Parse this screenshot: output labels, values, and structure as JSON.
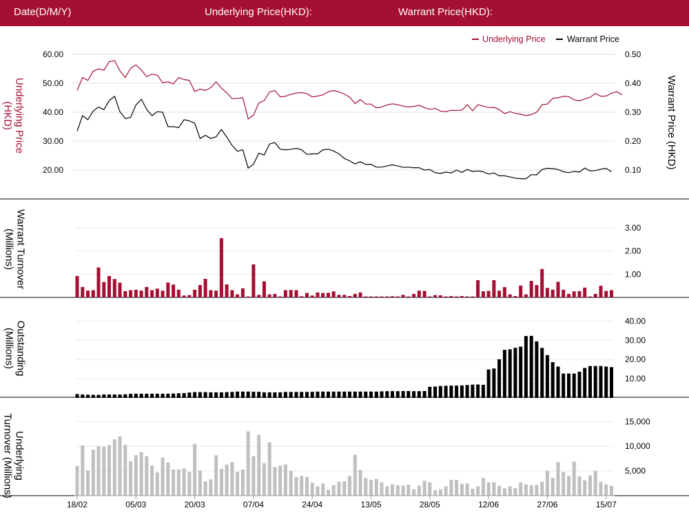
{
  "header": {
    "date_label": "Date(D/M/Y)",
    "underlying_label": "Underlying Price(HKD):",
    "warrant_label": "Warrant Price(HKD):"
  },
  "colors": {
    "brand": "#a50f31",
    "underlying": "#a50f31",
    "warrant": "#000000",
    "outstanding": "#000000",
    "underlying_turnover": "#c0c0c0"
  },
  "chart_data": [
    {
      "type": "line",
      "legend": [
        "Underlying Price",
        "Warrant Price"
      ],
      "legend_position": "top-right",
      "ylabel_left": "Underlying Price (HKD)",
      "ylabel_right": "Warrant  Price (HKD)",
      "yticks_left": [
        "60.00",
        "50.00",
        "40.00",
        "30.00",
        "20.00"
      ],
      "yticks_right": [
        "0.50",
        "0.40",
        "0.30",
        "0.20",
        "0.10"
      ],
      "ylim_left": [
        20,
        60
      ],
      "ylim_right": [
        0.1,
        0.5
      ],
      "grid": true,
      "series": [
        {
          "name": "Underlying Price",
          "axis": "left",
          "values": [
            47.5,
            52,
            51,
            54.2,
            55,
            54.5,
            57.5,
            57.8,
            54.3,
            52,
            55.2,
            56.4,
            54.6,
            52.3,
            53.2,
            52.8,
            50.2,
            50.5,
            49.8,
            52,
            51.3,
            51,
            47.2,
            48,
            47.5,
            48.5,
            50.5,
            48.3,
            46.7,
            44.7,
            44.8,
            45,
            37.7,
            39,
            43.2,
            44,
            47,
            47.5,
            45.3,
            45.5,
            46.2,
            46.6,
            46.8,
            46.4,
            45.3,
            45.6,
            46,
            47.1,
            47.5,
            47,
            46.3,
            45.2,
            43,
            44.4,
            42.8,
            42.8,
            41.5,
            41.8,
            42.5,
            42.9,
            42.6,
            42.1,
            41.8,
            42,
            42.4,
            41.6,
            41,
            41.3,
            40.4,
            40.2,
            40.7,
            40.6,
            40.7,
            42.6,
            40.5,
            42.6,
            42.1,
            41.6,
            41.7,
            40.9,
            39.5,
            40.2,
            39.6,
            39.3,
            38.8,
            39.2,
            40,
            42.6,
            42.8,
            44.8,
            45,
            45.5,
            45.4,
            44.3,
            43.9,
            44.6,
            45.2,
            46.5,
            45.5,
            45.6,
            46.6,
            47.1,
            46
          ]
        },
        {
          "name": "Warrant Price",
          "axis": "right",
          "values": [
            0.235,
            0.288,
            0.274,
            0.304,
            0.318,
            0.309,
            0.34,
            0.355,
            0.302,
            0.278,
            0.282,
            0.325,
            0.345,
            0.31,
            0.288,
            0.302,
            0.3,
            0.25,
            0.25,
            0.247,
            0.274,
            0.27,
            0.262,
            0.209,
            0.22,
            0.209,
            0.215,
            0.24,
            0.214,
            0.185,
            0.165,
            0.17,
            0.107,
            0.12,
            0.158,
            0.152,
            0.19,
            0.195,
            0.172,
            0.17,
            0.172,
            0.175,
            0.17,
            0.154,
            0.156,
            0.156,
            0.17,
            0.172,
            0.166,
            0.156,
            0.14,
            0.132,
            0.121,
            0.129,
            0.119,
            0.12,
            0.11,
            0.11,
            0.114,
            0.118,
            0.114,
            0.109,
            0.11,
            0.108,
            0.108,
            0.1,
            0.102,
            0.091,
            0.088,
            0.093,
            0.09,
            0.1,
            0.092,
            0.102,
            0.095,
            0.097,
            0.094,
            0.086,
            0.09,
            0.08,
            0.08,
            0.076,
            0.072,
            0.07,
            0.07,
            0.084,
            0.083,
            0.102,
            0.106,
            0.105,
            0.102,
            0.094,
            0.091,
            0.095,
            0.093,
            0.107,
            0.097,
            0.098,
            0.103,
            0.106,
            0.094
          ]
        }
      ]
    },
    {
      "type": "bar",
      "ylabel": "Warrant  Turnover (Millions)",
      "yticks": [
        "3.00",
        "2.00",
        "1.00"
      ],
      "ylim": [
        0,
        3.2
      ],
      "values": [
        0.92,
        0.45,
        0.29,
        0.31,
        1.29,
        0.66,
        0.92,
        0.79,
        0.63,
        0.27,
        0.31,
        0.33,
        0.29,
        0.45,
        0.31,
        0.38,
        0.29,
        0.64,
        0.55,
        0.33,
        0.08,
        0.1,
        0.33,
        0.53,
        0.8,
        0.31,
        0.29,
        2.55,
        0.56,
        0.31,
        0.13,
        0.39,
        0.04,
        1.42,
        0.11,
        0.69,
        0.13,
        0.15,
        0.04,
        0.31,
        0.32,
        0.31,
        0.05,
        0.19,
        0.08,
        0.21,
        0.19,
        0.2,
        0.26,
        0.11,
        0.11,
        0.06,
        0.15,
        0.21,
        0.04,
        0.04,
        0.04,
        0.04,
        0.04,
        0.05,
        0.04,
        0.11,
        0.04,
        0.15,
        0.29,
        0.28,
        0.04,
        0.1,
        0.09,
        0.04,
        0.06,
        0.04,
        0.06,
        0.04,
        0.04,
        0.74,
        0.26,
        0.28,
        0.74,
        0.29,
        0.44,
        0.13,
        0.06,
        0.51,
        0.13,
        0.71,
        0.53,
        1.22,
        0.41,
        0.33,
        0.67,
        0.33,
        0.15,
        0.26,
        0.27,
        0.42,
        0.04,
        0.15,
        0.5,
        0.28,
        0.31
      ]
    },
    {
      "type": "bar",
      "ylabel": "Outstanding (Millions)",
      "yticks": [
        "40.00",
        "30.00",
        "20.00",
        "10.00"
      ],
      "ylim": [
        0,
        43
      ],
      "values": [
        2,
        1.8,
        1.7,
        1.6,
        1.6,
        1.8,
        1.8,
        1.8,
        1.8,
        1.9,
        2.1,
        2.2,
        2.2,
        2.2,
        2.2,
        2.2,
        2.2,
        2.2,
        2.3,
        2.4,
        2.5,
        2.8,
        3,
        3,
        3,
        2.9,
        2.9,
        2.9,
        3,
        3.1,
        3.3,
        3.3,
        3.3,
        3.2,
        3.2,
        2.9,
        2.9,
        2.9,
        2.9,
        3.1,
        3.1,
        3.1,
        3.1,
        3.1,
        3.2,
        3.3,
        3.3,
        3.3,
        3.3,
        3.3,
        3.3,
        3.3,
        3.3,
        3.3,
        3.3,
        3.3,
        3.3,
        3.4,
        3.5,
        3.5,
        3.5,
        3.6,
        3.6,
        3.5,
        3.5,
        3.6,
        5.8,
        5.9,
        6.2,
        6.3,
        6.4,
        6.4,
        6.5,
        6.7,
        6.9,
        7,
        6.8,
        14.8,
        15.3,
        20.1,
        25,
        25.3,
        26.1,
        26.7,
        32.2,
        32.3,
        29.4,
        26,
        22.3,
        18.6,
        16.3,
        12.7,
        12.7,
        12.7,
        13.6,
        15.6,
        16.6,
        16.6,
        16.6,
        16.3,
        16
      ]
    },
    {
      "type": "bar",
      "ylabel": "Underlying Turnover (Millions)",
      "yticks": [
        "15,000",
        "10,000",
        "5,000"
      ],
      "ylim": [
        0,
        17000
      ],
      "values": [
        6000,
        10200,
        5100,
        9300,
        10000,
        9900,
        10200,
        11400,
        12000,
        10300,
        7000,
        8200,
        8800,
        8000,
        6100,
        4700,
        7700,
        6700,
        5300,
        5300,
        5500,
        4800,
        10500,
        5100,
        2900,
        3300,
        8200,
        5400,
        6300,
        6800,
        4800,
        5300,
        13000,
        8000,
        12300,
        6600,
        10800,
        5800,
        6100,
        6300,
        5000,
        3800,
        4000,
        3800,
        2600,
        1900,
        2500,
        1200,
        2100,
        2800,
        2900,
        4000,
        8300,
        5200,
        3600,
        3200,
        3400,
        2700,
        1900,
        2300,
        2100,
        2000,
        2200,
        1300,
        2000,
        3000,
        2700,
        1100,
        1300,
        1900,
        3200,
        3200,
        2400,
        2500,
        1400,
        1900,
        3600,
        2700,
        2700,
        2000,
        1500,
        1900,
        1500,
        2700,
        2300,
        2100,
        2200,
        2800,
        5000,
        3600,
        6800,
        4800,
        4000,
        6900,
        3900,
        3100,
        4100,
        5000,
        2800,
        2300,
        2000
      ]
    }
  ],
  "x_axis": {
    "ticks": [
      "18/02",
      "05/03",
      "20/03",
      "07/04",
      "24/04",
      "13/05",
      "28/05",
      "12/06",
      "27/06",
      "15/07"
    ],
    "tick_index": [
      0,
      11,
      22,
      33,
      44,
      55,
      66,
      77,
      88,
      99
    ]
  }
}
